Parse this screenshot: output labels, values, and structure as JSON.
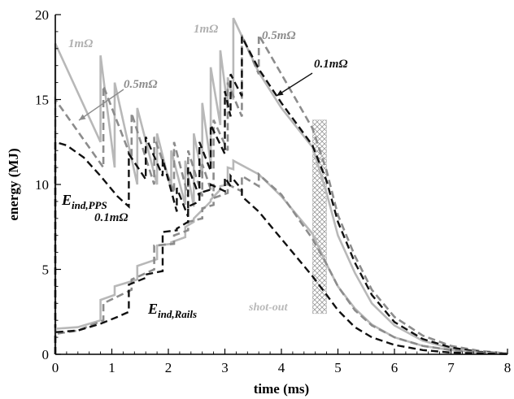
{
  "chart_data": {
    "type": "line",
    "title": "",
    "xlabel": "time (ms)",
    "ylabel": "energy (MJ)",
    "xlim": [
      0,
      8
    ],
    "ylim": [
      0,
      20
    ],
    "xticks": [
      "0",
      "1",
      "2",
      "3",
      "4",
      "5",
      "6",
      "7",
      "8"
    ],
    "yticks": [
      "0",
      "5",
      "10",
      "15",
      "20"
    ],
    "grid": false,
    "colors": {
      "r1": "#b8b8b8",
      "r05": "#8c8c8c",
      "r01": "#111111",
      "hatch": "#a0a0a0"
    },
    "annotations": {
      "r1_left": "1mΩ",
      "r1_top": "1mΩ",
      "r05_left": "0.5mΩ",
      "r05_top": "0.5mΩ",
      "r01_top": "0.1mΩ",
      "r01_left": "0.1mΩ",
      "e_pps_main": "E",
      "e_pps_sub": "ind,PPS",
      "e_rails_main": "E",
      "e_rails_sub": "ind,Rails",
      "shot_out": "shot-out"
    },
    "shot_out_range": [
      4.55,
      4.8
    ],
    "series": [
      {
        "key": "pps_r1",
        "style": "solid",
        "color": "r1",
        "x": [
          0,
          0,
          0.8,
          0.8,
          1.05,
          1.05,
          1.45,
          1.45,
          1.8,
          1.8,
          2.05,
          2.05,
          2.3,
          2.3,
          2.45,
          2.45,
          2.6,
          2.6,
          2.75,
          2.75,
          2.92,
          2.92,
          3.05,
          3.05,
          3.15,
          3.15,
          3.6,
          4.0,
          4.55,
          4.8,
          5.0,
          5.3,
          5.6,
          6.0,
          6.5,
          7.0,
          7.5,
          8.0
        ],
        "y": [
          0,
          18.3,
          12.5,
          17.6,
          11.0,
          16.0,
          10.0,
          14.5,
          10.0,
          13.0,
          9.7,
          12.0,
          8.8,
          11.4,
          8.7,
          13.0,
          10.5,
          14.8,
          11.2,
          16.9,
          13.5,
          17.9,
          14.5,
          16.3,
          15.0,
          19.8,
          16.6,
          14.5,
          12.2,
          9.5,
          7.0,
          4.8,
          3.0,
          1.7,
          0.8,
          0.35,
          0.15,
          0.05
        ]
      },
      {
        "key": "pps_r05",
        "style": "dashed",
        "color": "r05",
        "x": [
          0,
          0,
          0.85,
          0.85,
          1.35,
          1.35,
          1.75,
          1.75,
          2.1,
          2.1,
          2.35,
          2.35,
          2.6,
          2.6,
          2.8,
          2.8,
          3.05,
          3.05,
          3.3,
          3.3,
          3.6,
          3.6,
          4.0,
          4.55,
          4.8,
          5.0,
          5.3,
          5.6,
          6.0,
          6.5,
          7.0,
          7.5,
          8.0
        ],
        "y": [
          0,
          15.0,
          11.0,
          15.8,
          11.5,
          14.2,
          10.0,
          12.8,
          9.5,
          12.5,
          9.3,
          12.0,
          9.3,
          11.2,
          9.2,
          13.8,
          12.0,
          16.0,
          14.0,
          18.8,
          16.5,
          18.8,
          16.5,
          13.3,
          10.8,
          8.2,
          5.8,
          3.8,
          2.2,
          1.1,
          0.5,
          0.2,
          0.05
        ]
      },
      {
        "key": "pps_r01",
        "style": "dashed",
        "color": "r01",
        "x": [
          0,
          0,
          0.2,
          0.5,
          0.8,
          1.1,
          1.3,
          1.3,
          1.6,
          1.6,
          1.9,
          1.9,
          2.15,
          2.15,
          2.35,
          2.35,
          2.55,
          2.55,
          2.75,
          2.75,
          3.0,
          3.0,
          3.1,
          3.1,
          3.3,
          3.3,
          3.6,
          4.0,
          4.55,
          4.8,
          5.0,
          5.3,
          5.6,
          6.0,
          6.5,
          7.0,
          7.5,
          8.0
        ],
        "y": [
          0,
          12.5,
          12.3,
          11.6,
          10.5,
          9.3,
          8.7,
          11.8,
          10.3,
          12.8,
          10.5,
          11.5,
          8.4,
          9.8,
          8.1,
          11.0,
          9.3,
          12.5,
          10.8,
          13.5,
          11.8,
          15.5,
          14.0,
          16.5,
          15.2,
          18.7,
          16.8,
          14.8,
          12.3,
          10.2,
          7.8,
          5.4,
          3.5,
          1.9,
          0.9,
          0.4,
          0.15,
          0.05
        ]
      },
      {
        "key": "rails_r1",
        "style": "solid",
        "color": "r1",
        "x": [
          0,
          0,
          0.4,
          0.8,
          0.8,
          1.05,
          1.05,
          1.45,
          1.45,
          1.8,
          1.8,
          2.05,
          2.05,
          2.3,
          2.3,
          2.45,
          2.45,
          2.6,
          2.6,
          2.75,
          2.75,
          2.92,
          2.92,
          3.05,
          3.05,
          3.15,
          3.15,
          3.6,
          4.0,
          4.55,
          4.8,
          5.0,
          5.3,
          5.6,
          6.0,
          6.5,
          7.0,
          7.5,
          8.0
        ],
        "y": [
          0,
          1.5,
          1.6,
          2.0,
          3.2,
          3.5,
          4.0,
          4.4,
          5.2,
          5.6,
          6.4,
          6.5,
          6.6,
          6.9,
          7.5,
          7.8,
          8.0,
          8.5,
          8.5,
          9.0,
          9.1,
          9.7,
          9.9,
          10.0,
          11.0,
          10.9,
          11.4,
          10.6,
          9.3,
          7.1,
          5.3,
          4.0,
          2.7,
          1.75,
          1.0,
          0.5,
          0.25,
          0.1,
          0.05
        ]
      },
      {
        "key": "rails_r05",
        "style": "dashed",
        "color": "r05",
        "x": [
          0,
          0,
          0.4,
          0.85,
          0.85,
          1.35,
          1.35,
          1.75,
          1.75,
          2.1,
          2.1,
          2.35,
          2.35,
          2.6,
          2.6,
          2.8,
          2.8,
          3.05,
          3.05,
          3.3,
          3.3,
          3.6,
          3.6,
          4.0,
          4.55,
          4.8,
          5.0,
          5.3,
          5.6,
          6.0,
          6.5,
          7.0,
          7.5,
          8.0
        ],
        "y": [
          0,
          1.2,
          1.4,
          2.0,
          3.0,
          3.8,
          4.4,
          5.0,
          6.4,
          6.5,
          7.0,
          7.3,
          7.8,
          8.0,
          8.6,
          8.8,
          9.2,
          9.5,
          10.0,
          9.6,
          10.5,
          9.9,
          10.6,
          9.4,
          6.8,
          5.3,
          4.0,
          2.6,
          1.7,
          1.0,
          0.5,
          0.25,
          0.1,
          0.05
        ]
      },
      {
        "key": "rails_r01",
        "style": "dashed",
        "color": "r01",
        "x": [
          0,
          0,
          0.4,
          0.8,
          1.1,
          1.3,
          1.3,
          1.6,
          1.6,
          1.9,
          1.9,
          2.15,
          2.15,
          2.35,
          2.35,
          2.55,
          2.55,
          2.75,
          2.75,
          3.0,
          3.0,
          3.1,
          3.1,
          3.3,
          3.3,
          3.6,
          4.0,
          4.55,
          4.8,
          5.0,
          5.3,
          5.6,
          6.0,
          6.5,
          7.0,
          7.5,
          8.0
        ],
        "y": [
          0,
          1.3,
          1.4,
          1.8,
          2.2,
          2.5,
          4.1,
          4.5,
          4.7,
          4.9,
          7.2,
          7.3,
          7.4,
          7.8,
          8.7,
          9.0,
          9.5,
          9.7,
          10.0,
          9.6,
          10.4,
          9.9,
          10.5,
          9.7,
          9.3,
          8.4,
          6.8,
          4.6,
          3.5,
          2.6,
          1.6,
          1.0,
          0.55,
          0.25,
          0.1,
          0.05,
          0.02
        ]
      }
    ]
  }
}
